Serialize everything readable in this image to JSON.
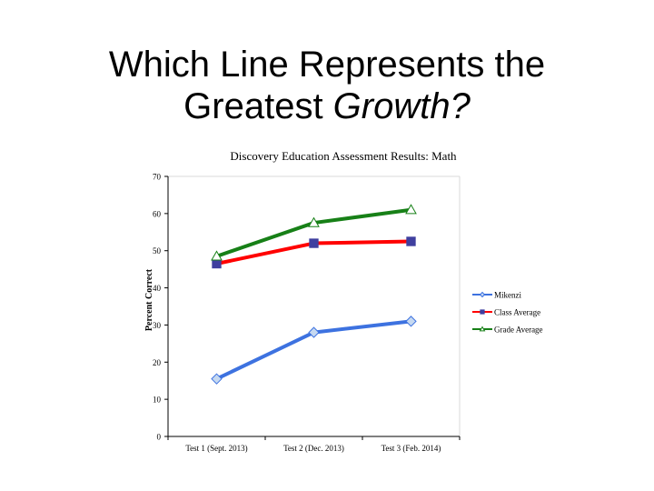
{
  "slide": {
    "title_line1": "Which Line Represents the",
    "title_line2_a": "Greatest ",
    "title_line2_b": "Growth?"
  },
  "chart_data": {
    "type": "line",
    "title": "Discovery Education Assessment Results: Math",
    "ylabel": "Percent Correct",
    "xlabel": "",
    "ylim": [
      0,
      70
    ],
    "yticks": [
      0,
      10,
      20,
      30,
      40,
      50,
      60,
      70
    ],
    "categories": [
      "Test 1 (Sept. 2013)",
      "Test 2 (Dec. 2013)",
      "Test 3 (Feb. 2014)"
    ],
    "grid": false,
    "legend_position": "right",
    "series": [
      {
        "name": "Mikenzi",
        "values": [
          15.5,
          28,
          31
        ],
        "color": "#3d72e0",
        "marker": "diamond",
        "marker_fill": "#c6d9f1"
      },
      {
        "name": "Class Average",
        "values": [
          46.5,
          52,
          52.5
        ],
        "color": "#ff0000",
        "marker": "square",
        "marker_fill": "#3f3f9f"
      },
      {
        "name": "Grade Average",
        "values": [
          48.5,
          57.5,
          61
        ],
        "color": "#178017",
        "marker": "triangle",
        "marker_fill": "#ffffff"
      }
    ]
  }
}
